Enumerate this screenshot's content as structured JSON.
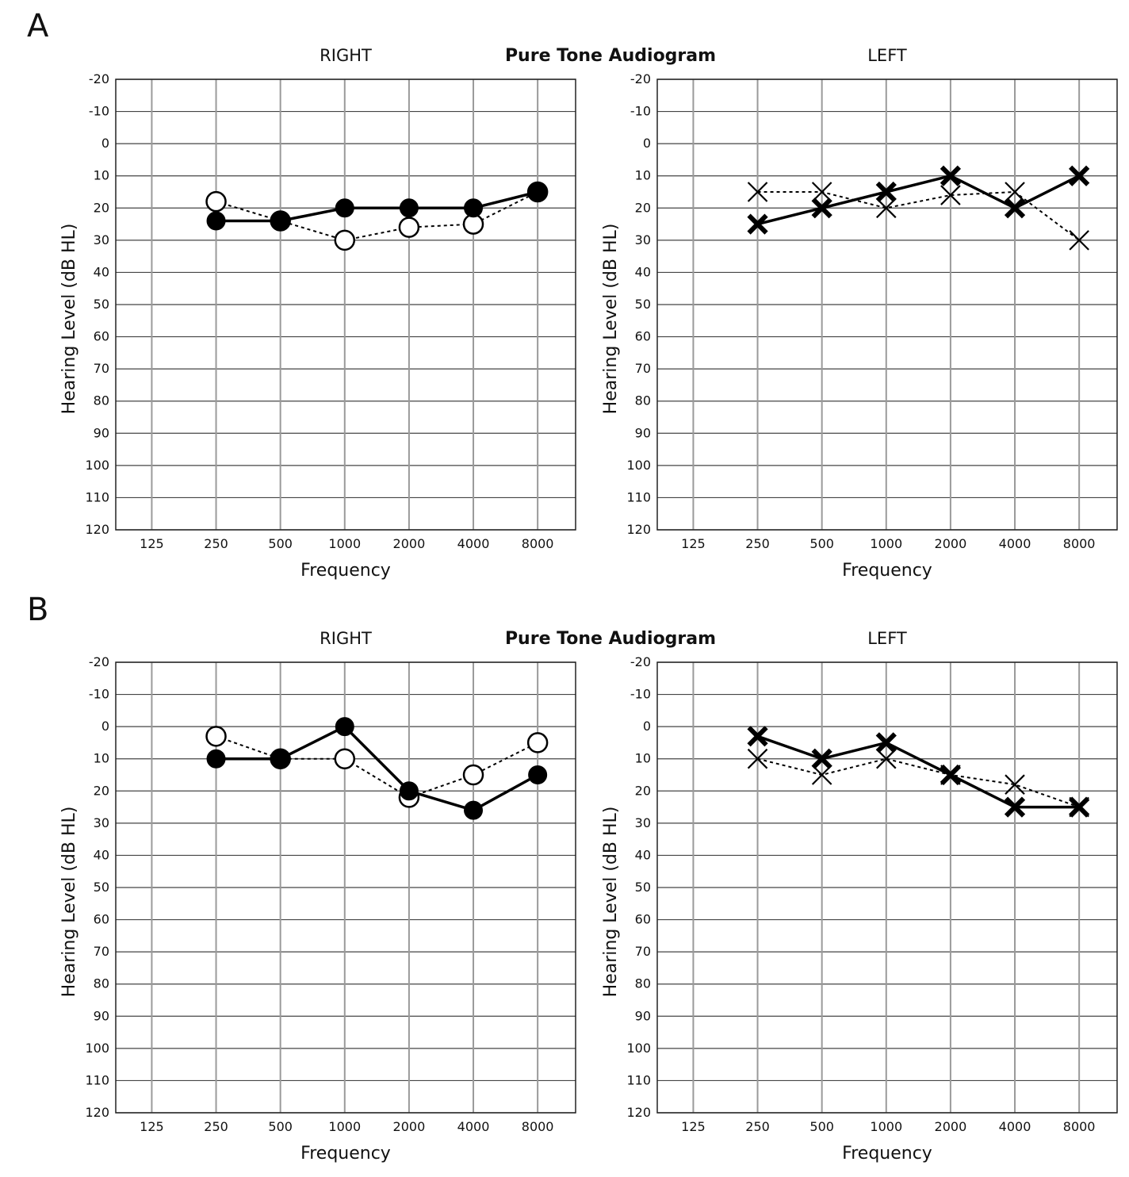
{
  "main_title": "Pure Tone Audiogram",
  "chart_data": [
    {
      "panel": "A",
      "title": "Pure Tone Audiogram",
      "ear": "RIGHT",
      "type": "line",
      "xlabel": "Frequency",
      "ylabel": "Hearing Level (dB HL)",
      "categories": [
        "125",
        "250",
        "500",
        "1000",
        "2000",
        "4000",
        "8000"
      ],
      "yticks": [
        -20,
        -10,
        0,
        10,
        20,
        30,
        40,
        50,
        60,
        70,
        80,
        90,
        100,
        110,
        120
      ],
      "ylim": [
        -20,
        120
      ],
      "y_inverted": true,
      "grid": true,
      "series": [
        {
          "marker": "filled-circle",
          "line": "solid",
          "x": [
            "250",
            "500",
            "1000",
            "2000",
            "4000",
            "8000"
          ],
          "values": [
            24,
            24,
            20,
            20,
            20,
            15
          ]
        },
        {
          "marker": "open-circle",
          "line": "dashed",
          "x": [
            "250",
            "500",
            "1000",
            "2000",
            "4000",
            "8000"
          ],
          "values": [
            18,
            24,
            30,
            26,
            25,
            15
          ]
        }
      ]
    },
    {
      "panel": "A",
      "title": "Pure Tone Audiogram",
      "ear": "LEFT",
      "type": "line",
      "xlabel": "Frequency",
      "ylabel": "Hearing Level (dB HL)",
      "categories": [
        "125",
        "250",
        "500",
        "1000",
        "2000",
        "4000",
        "8000"
      ],
      "yticks": [
        -20,
        -10,
        0,
        10,
        20,
        30,
        40,
        50,
        60,
        70,
        80,
        90,
        100,
        110,
        120
      ],
      "ylim": [
        -20,
        120
      ],
      "y_inverted": true,
      "grid": true,
      "series": [
        {
          "marker": "bold-x",
          "line": "solid",
          "x": [
            "250",
            "500",
            "1000",
            "2000",
            "4000",
            "8000"
          ],
          "values": [
            25,
            20,
            15,
            10,
            20,
            10
          ]
        },
        {
          "marker": "thin-x",
          "line": "dashed",
          "x": [
            "250",
            "500",
            "1000",
            "2000",
            "4000",
            "8000"
          ],
          "values": [
            15,
            15,
            20,
            16,
            15,
            30
          ]
        }
      ]
    },
    {
      "panel": "B",
      "title": "Pure Tone Audiogram",
      "ear": "RIGHT",
      "type": "line",
      "xlabel": "Frequency",
      "ylabel": "Hearing Level (dB HL)",
      "categories": [
        "125",
        "250",
        "500",
        "1000",
        "2000",
        "4000",
        "8000"
      ],
      "yticks": [
        -20,
        -10,
        0,
        10,
        20,
        30,
        40,
        50,
        60,
        70,
        80,
        90,
        100,
        110,
        120
      ],
      "ylim": [
        -20,
        120
      ],
      "y_inverted": true,
      "grid": true,
      "series": [
        {
          "marker": "filled-circle",
          "line": "solid",
          "x": [
            "250",
            "500",
            "1000",
            "2000",
            "4000",
            "8000"
          ],
          "values": [
            10,
            10,
            0,
            20,
            26,
            15
          ]
        },
        {
          "marker": "open-circle",
          "line": "dashed",
          "x": [
            "250",
            "500",
            "1000",
            "2000",
            "4000",
            "8000"
          ],
          "values": [
            3,
            10,
            10,
            22,
            15,
            5
          ]
        }
      ]
    },
    {
      "panel": "B",
      "title": "Pure Tone Audiogram",
      "ear": "LEFT",
      "type": "line",
      "xlabel": "Frequency",
      "ylabel": "Hearing Level (dB HL)",
      "categories": [
        "125",
        "250",
        "500",
        "1000",
        "2000",
        "4000",
        "8000"
      ],
      "yticks": [
        -20,
        -10,
        0,
        10,
        20,
        30,
        40,
        50,
        60,
        70,
        80,
        90,
        100,
        110,
        120
      ],
      "ylim": [
        -20,
        120
      ],
      "y_inverted": true,
      "grid": true,
      "series": [
        {
          "marker": "bold-x",
          "line": "solid",
          "x": [
            "250",
            "500",
            "1000",
            "2000",
            "4000",
            "8000"
          ],
          "values": [
            3,
            10,
            5,
            15,
            25,
            25
          ]
        },
        {
          "marker": "thin-x",
          "line": "dashed",
          "x": [
            "250",
            "500",
            "1000",
            "2000",
            "4000",
            "8000"
          ],
          "values": [
            10,
            15,
            10,
            15,
            18,
            25
          ]
        }
      ]
    }
  ]
}
